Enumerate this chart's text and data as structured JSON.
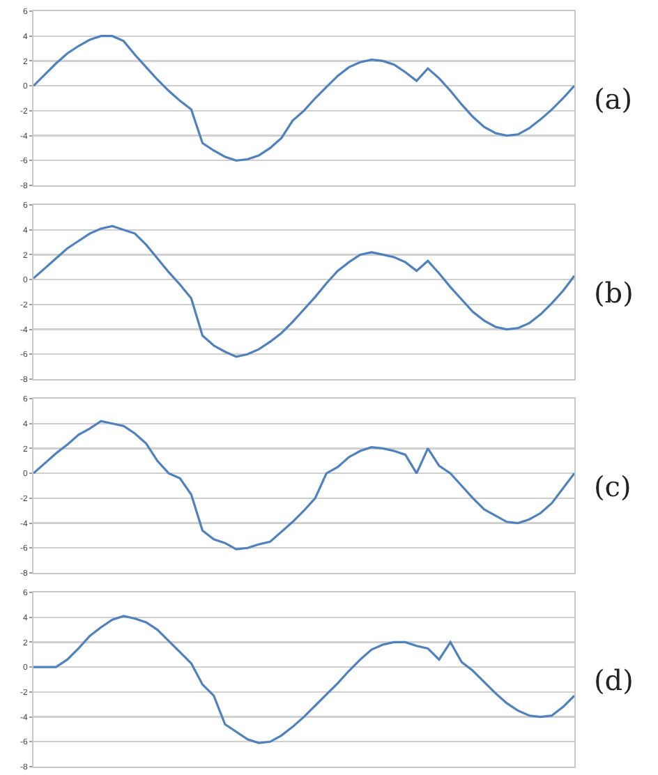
{
  "chart_data": [
    {
      "type": "line",
      "categories": [
        null,
        null,
        null,
        null,
        null,
        null,
        null,
        null,
        null,
        null,
        null,
        null,
        null,
        null,
        null,
        null,
        null,
        null,
        null,
        null,
        null,
        null,
        null,
        null,
        null,
        null,
        null,
        null,
        null,
        null,
        null,
        null,
        null,
        null,
        null,
        null,
        null,
        null,
        null,
        null,
        null,
        null,
        null,
        null,
        null,
        null,
        null,
        null,
        null
      ],
      "values": [
        0,
        0.9,
        1.8,
        2.6,
        3.2,
        3.7,
        4.0,
        4.0,
        3.6,
        2.5,
        1.5,
        0.5,
        -0.4,
        -1.2,
        -1.9,
        -4.6,
        -5.2,
        -5.7,
        -6.0,
        -5.9,
        -5.6,
        -5.0,
        -4.2,
        -2.8,
        -2.0,
        -1.0,
        -0.1,
        0.8,
        1.5,
        1.9,
        2.1,
        2.0,
        1.7,
        1.1,
        0.4,
        1.4,
        0.6,
        -0.4,
        -1.5,
        -2.5,
        -3.3,
        -3.8,
        -4.0,
        -3.9,
        -3.4,
        -2.7,
        -1.9,
        -1.0,
        0.0
      ],
      "color": "#4f81bd",
      "ylim": [
        -8,
        6
      ],
      "yticks": [
        -8,
        -6,
        -4,
        -2,
        0,
        2,
        4,
        6
      ],
      "grid": "y",
      "tick_labels": "y",
      "annotations": [
        "(a)"
      ]
    },
    {
      "type": "line",
      "categories": [
        null,
        null,
        null,
        null,
        null,
        null,
        null,
        null,
        null,
        null,
        null,
        null,
        null,
        null,
        null,
        null,
        null,
        null,
        null,
        null,
        null,
        null,
        null,
        null,
        null,
        null,
        null,
        null,
        null,
        null,
        null,
        null,
        null,
        null,
        null,
        null,
        null,
        null,
        null,
        null,
        null,
        null,
        null,
        null,
        null,
        null,
        null,
        null,
        null
      ],
      "values": [
        0.1,
        0.9,
        1.7,
        2.5,
        3.1,
        3.7,
        4.1,
        4.3,
        4.0,
        3.7,
        2.8,
        1.7,
        0.6,
        -0.4,
        -1.5,
        -4.5,
        -5.3,
        -5.8,
        -6.2,
        -6.0,
        -5.6,
        -5.0,
        -4.3,
        -3.4,
        -2.4,
        -1.4,
        -0.3,
        0.7,
        1.4,
        2.0,
        2.2,
        2.0,
        1.8,
        1.4,
        0.7,
        1.5,
        0.5,
        -0.6,
        -1.6,
        -2.6,
        -3.3,
        -3.8,
        -4.0,
        -3.9,
        -3.5,
        -2.8,
        -1.9,
        -0.9,
        0.3
      ],
      "color": "#4f81bd",
      "ylim": [
        -8,
        6
      ],
      "yticks": [
        -8,
        -6,
        -4,
        -2,
        0,
        2,
        4,
        6
      ],
      "grid": "y",
      "tick_labels": "y",
      "annotations": [
        "(b)"
      ]
    },
    {
      "type": "line",
      "categories": [
        null,
        null,
        null,
        null,
        null,
        null,
        null,
        null,
        null,
        null,
        null,
        null,
        null,
        null,
        null,
        null,
        null,
        null,
        null,
        null,
        null,
        null,
        null,
        null,
        null,
        null,
        null,
        null,
        null,
        null,
        null,
        null,
        null,
        null,
        null,
        null,
        null,
        null,
        null,
        null,
        null,
        null,
        null,
        null,
        null,
        null,
        null,
        null,
        null
      ],
      "values": [
        0,
        0.8,
        1.6,
        2.3,
        3.1,
        3.6,
        4.2,
        4.0,
        3.8,
        3.2,
        2.4,
        1.0,
        0.0,
        -0.4,
        -1.7,
        -4.6,
        -5.3,
        -5.6,
        -6.1,
        -6.0,
        -5.7,
        -5.5,
        -4.7,
        -3.9,
        -3.0,
        -2.0,
        0.0,
        0.5,
        1.3,
        1.8,
        2.1,
        2.0,
        1.8,
        1.5,
        0.0,
        2.0,
        0.6,
        0.0,
        -1.0,
        -2.0,
        -2.9,
        -3.4,
        -3.9,
        -4.0,
        -3.7,
        -3.2,
        -2.4,
        -1.2,
        0.0
      ],
      "color": "#4f81bd",
      "ylim": [
        -8,
        6
      ],
      "yticks": [
        -8,
        -6,
        -4,
        -2,
        0,
        2,
        4,
        6
      ],
      "grid": "y",
      "tick_labels": "y",
      "annotations": [
        "(c)"
      ]
    },
    {
      "type": "line",
      "categories": [
        null,
        null,
        null,
        null,
        null,
        null,
        null,
        null,
        null,
        null,
        null,
        null,
        null,
        null,
        null,
        null,
        null,
        null,
        null,
        null,
        null,
        null,
        null,
        null,
        null,
        null,
        null,
        null,
        null,
        null,
        null,
        null,
        null,
        null,
        null,
        null,
        null,
        null,
        null,
        null,
        null,
        null,
        null,
        null,
        null,
        null,
        null,
        null,
        null
      ],
      "values": [
        0,
        0,
        0,
        0.6,
        1.5,
        2.5,
        3.2,
        3.8,
        4.1,
        3.9,
        3.6,
        3.0,
        2.1,
        1.2,
        0.3,
        -1.4,
        -2.3,
        -4.6,
        -5.2,
        -5.8,
        -6.1,
        -6.0,
        -5.5,
        -4.8,
        -4.0,
        -3.1,
        -2.2,
        -1.3,
        -0.3,
        0.6,
        1.4,
        1.8,
        2.0,
        2.0,
        1.7,
        1.5,
        0.6,
        2.0,
        0.4,
        -0.3,
        -1.2,
        -2.1,
        -2.9,
        -3.5,
        -3.9,
        -4.0,
        -3.9,
        -3.2,
        -2.3
      ],
      "color": "#4f81bd",
      "ylim": [
        -8,
        6
      ],
      "yticks": [
        -8,
        -6,
        -4,
        -2,
        0,
        2,
        4,
        6
      ],
      "grid": "y",
      "tick_labels": "y",
      "annotations": [
        "(d)"
      ]
    }
  ]
}
